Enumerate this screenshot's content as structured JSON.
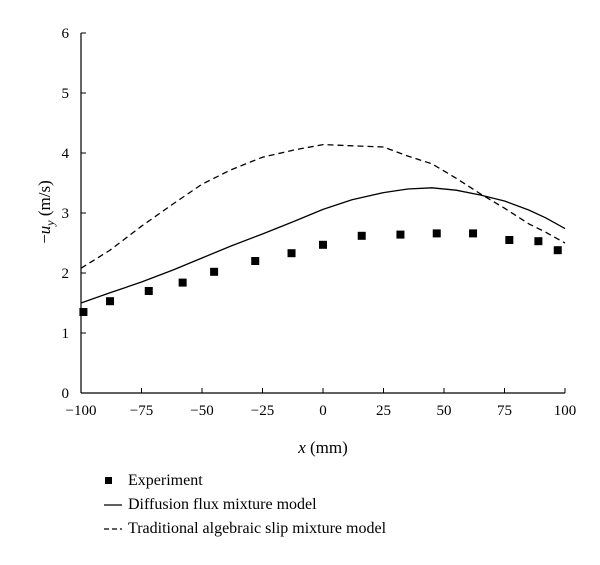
{
  "chart_data": {
    "type": "line",
    "xlabel_var": "x",
    "xlabel_unit": " (mm)",
    "ylabel_sign": "−",
    "ylabel_var": "u",
    "ylabel_sub": "y",
    "ylabel_unit": " (m/s)",
    "xlim": [
      -100,
      100
    ],
    "ylim": [
      0,
      6
    ],
    "x_ticks": [
      -100,
      -75,
      -50,
      -25,
      0,
      25,
      50,
      75,
      100
    ],
    "x_tick_labels": [
      "−100",
      "−75",
      "−50",
      "−25",
      "0",
      "25",
      "50",
      "75",
      "100"
    ],
    "y_ticks": [
      0,
      1,
      2,
      3,
      4,
      5,
      6
    ],
    "y_tick_labels": [
      "0",
      "1",
      "2",
      "3",
      "4",
      "5",
      "6"
    ],
    "grid": false,
    "legend_position": "bottom",
    "series": [
      {
        "name": "Experiment",
        "style": "markers",
        "color": "#000000",
        "x": [
          -99,
          -88,
          -72,
          -58,
          -45,
          -28,
          -13,
          0,
          16,
          32,
          47,
          62,
          77,
          89,
          97
        ],
        "y": [
          1.35,
          1.53,
          1.7,
          1.84,
          2.02,
          2.2,
          2.33,
          2.47,
          2.62,
          2.64,
          2.66,
          2.66,
          2.55,
          2.53,
          2.38
        ]
      },
      {
        "name": "Diffusion flux mixture model",
        "style": "solid",
        "color": "#000000",
        "x": [
          -100,
          -88,
          -75,
          -62,
          -50,
          -38,
          -25,
          -12,
          0,
          12,
          25,
          35,
          45,
          55,
          65,
          75,
          85,
          92,
          100
        ],
        "y": [
          1.5,
          1.67,
          1.85,
          2.05,
          2.25,
          2.45,
          2.65,
          2.86,
          3.06,
          3.22,
          3.34,
          3.4,
          3.42,
          3.38,
          3.3,
          3.2,
          3.05,
          2.92,
          2.74
        ]
      },
      {
        "name": "Traditional algebraic slip mixture model",
        "style": "dashed",
        "color": "#000000",
        "x": [
          -100,
          -88,
          -75,
          -62,
          -50,
          -38,
          -25,
          -12,
          0,
          12,
          25,
          35,
          45,
          55,
          65,
          75,
          85,
          92,
          100
        ],
        "y": [
          2.08,
          2.38,
          2.78,
          3.15,
          3.48,
          3.72,
          3.93,
          4.05,
          4.14,
          4.12,
          4.1,
          3.95,
          3.82,
          3.58,
          3.32,
          3.08,
          2.82,
          2.68,
          2.5
        ]
      }
    ]
  }
}
